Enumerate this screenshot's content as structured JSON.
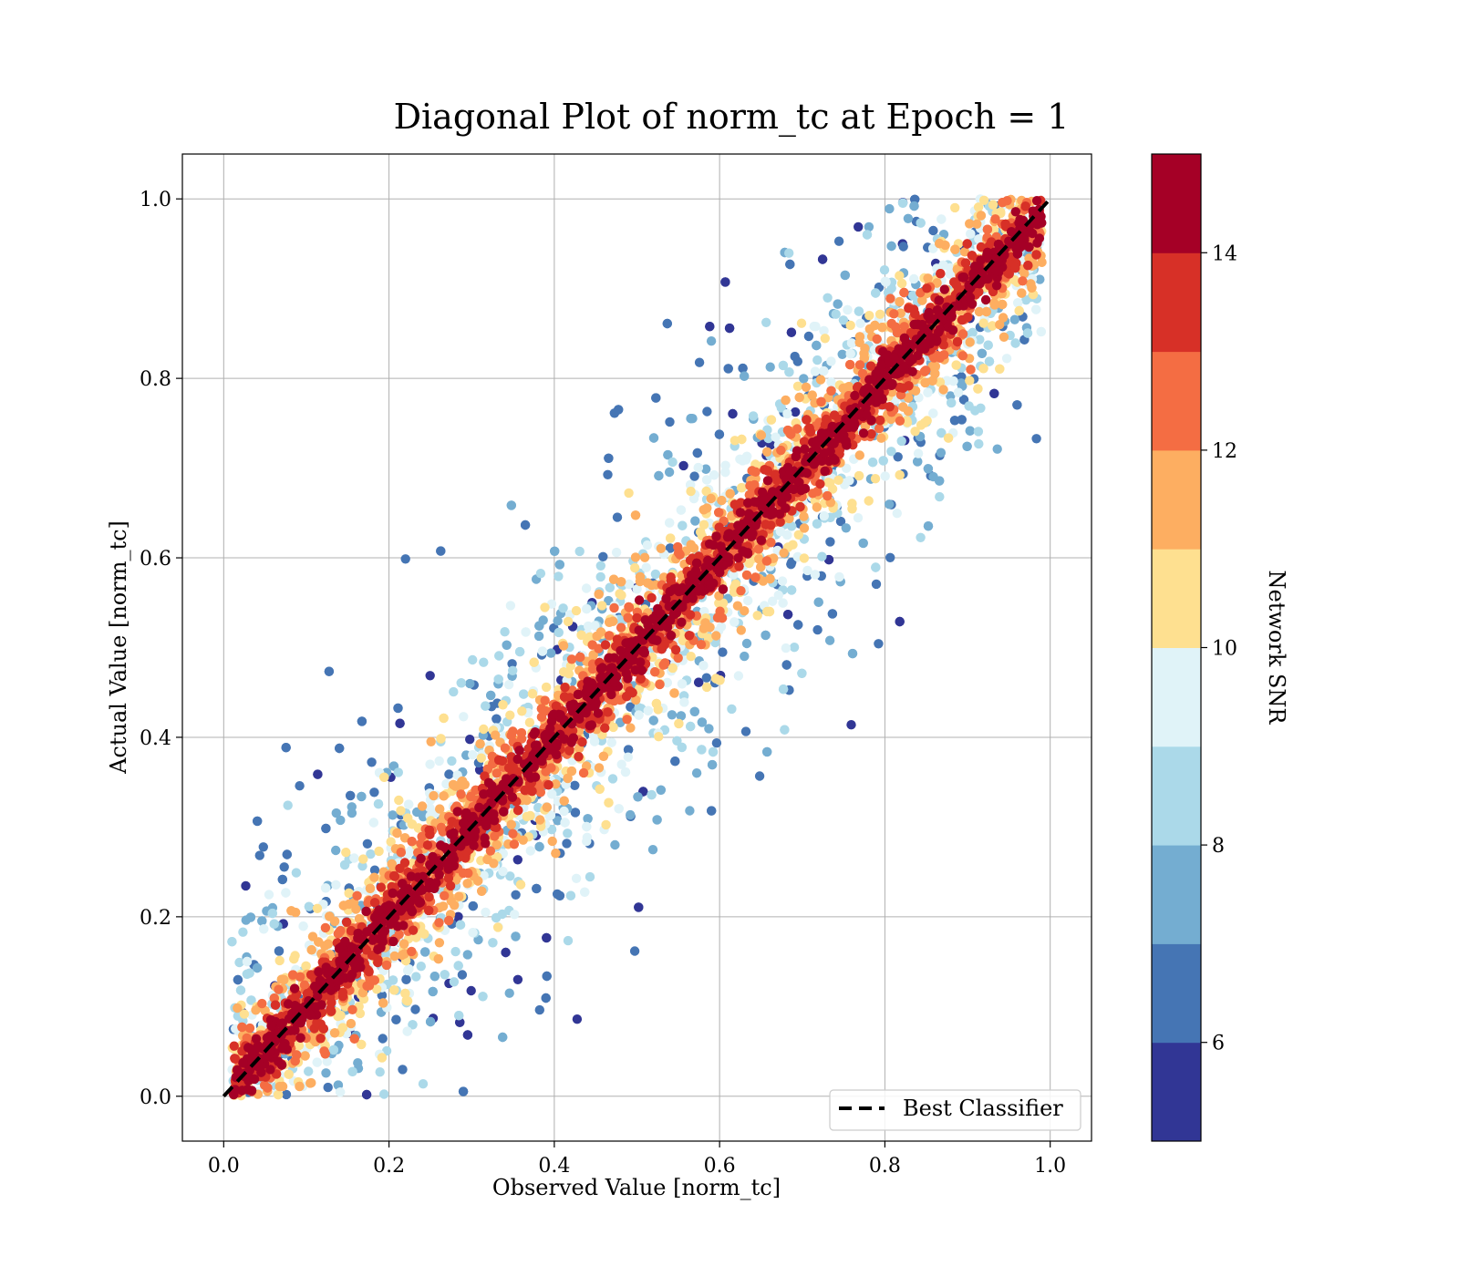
{
  "chart_data": {
    "type": "scatter",
    "title": "Diagonal Plot of norm_tc at Epoch = 1",
    "xlabel": "Observed Value [norm_tc]",
    "ylabel": "Actual Value [norm_tc]",
    "xlim": [
      -0.05,
      1.05
    ],
    "ylim": [
      -0.05,
      1.05
    ],
    "xticks": [
      "0.0",
      "0.2",
      "0.4",
      "0.6",
      "0.8",
      "1.0"
    ],
    "yticks": [
      "0.0",
      "0.2",
      "0.4",
      "0.6",
      "0.8",
      "1.0"
    ],
    "grid": true,
    "reference_line": {
      "name": "Best Classifier",
      "x": [
        0,
        1
      ],
      "y": [
        0,
        1
      ],
      "style": "dashed",
      "color": "#000000"
    },
    "legend": {
      "position": "lower-right",
      "entries": [
        "Best Classifier"
      ]
    },
    "colorbar": {
      "label": "Network SNR",
      "range": [
        5,
        15
      ],
      "ticks": [
        "6",
        "8",
        "10",
        "12",
        "14"
      ],
      "colors": [
        "#313695",
        "#4575b4",
        "#74add1",
        "#abd9e9",
        "#e0f3f8",
        "#fee090",
        "#fdae61",
        "#f46d43",
        "#d73027",
        "#a50026"
      ]
    },
    "description_series": {
      "high_snr_band_color": "#a50026",
      "points_note": "dense cloud of scatter points; high SNR points clustered tightly along diagonal, low SNR points scattered widely"
    }
  }
}
